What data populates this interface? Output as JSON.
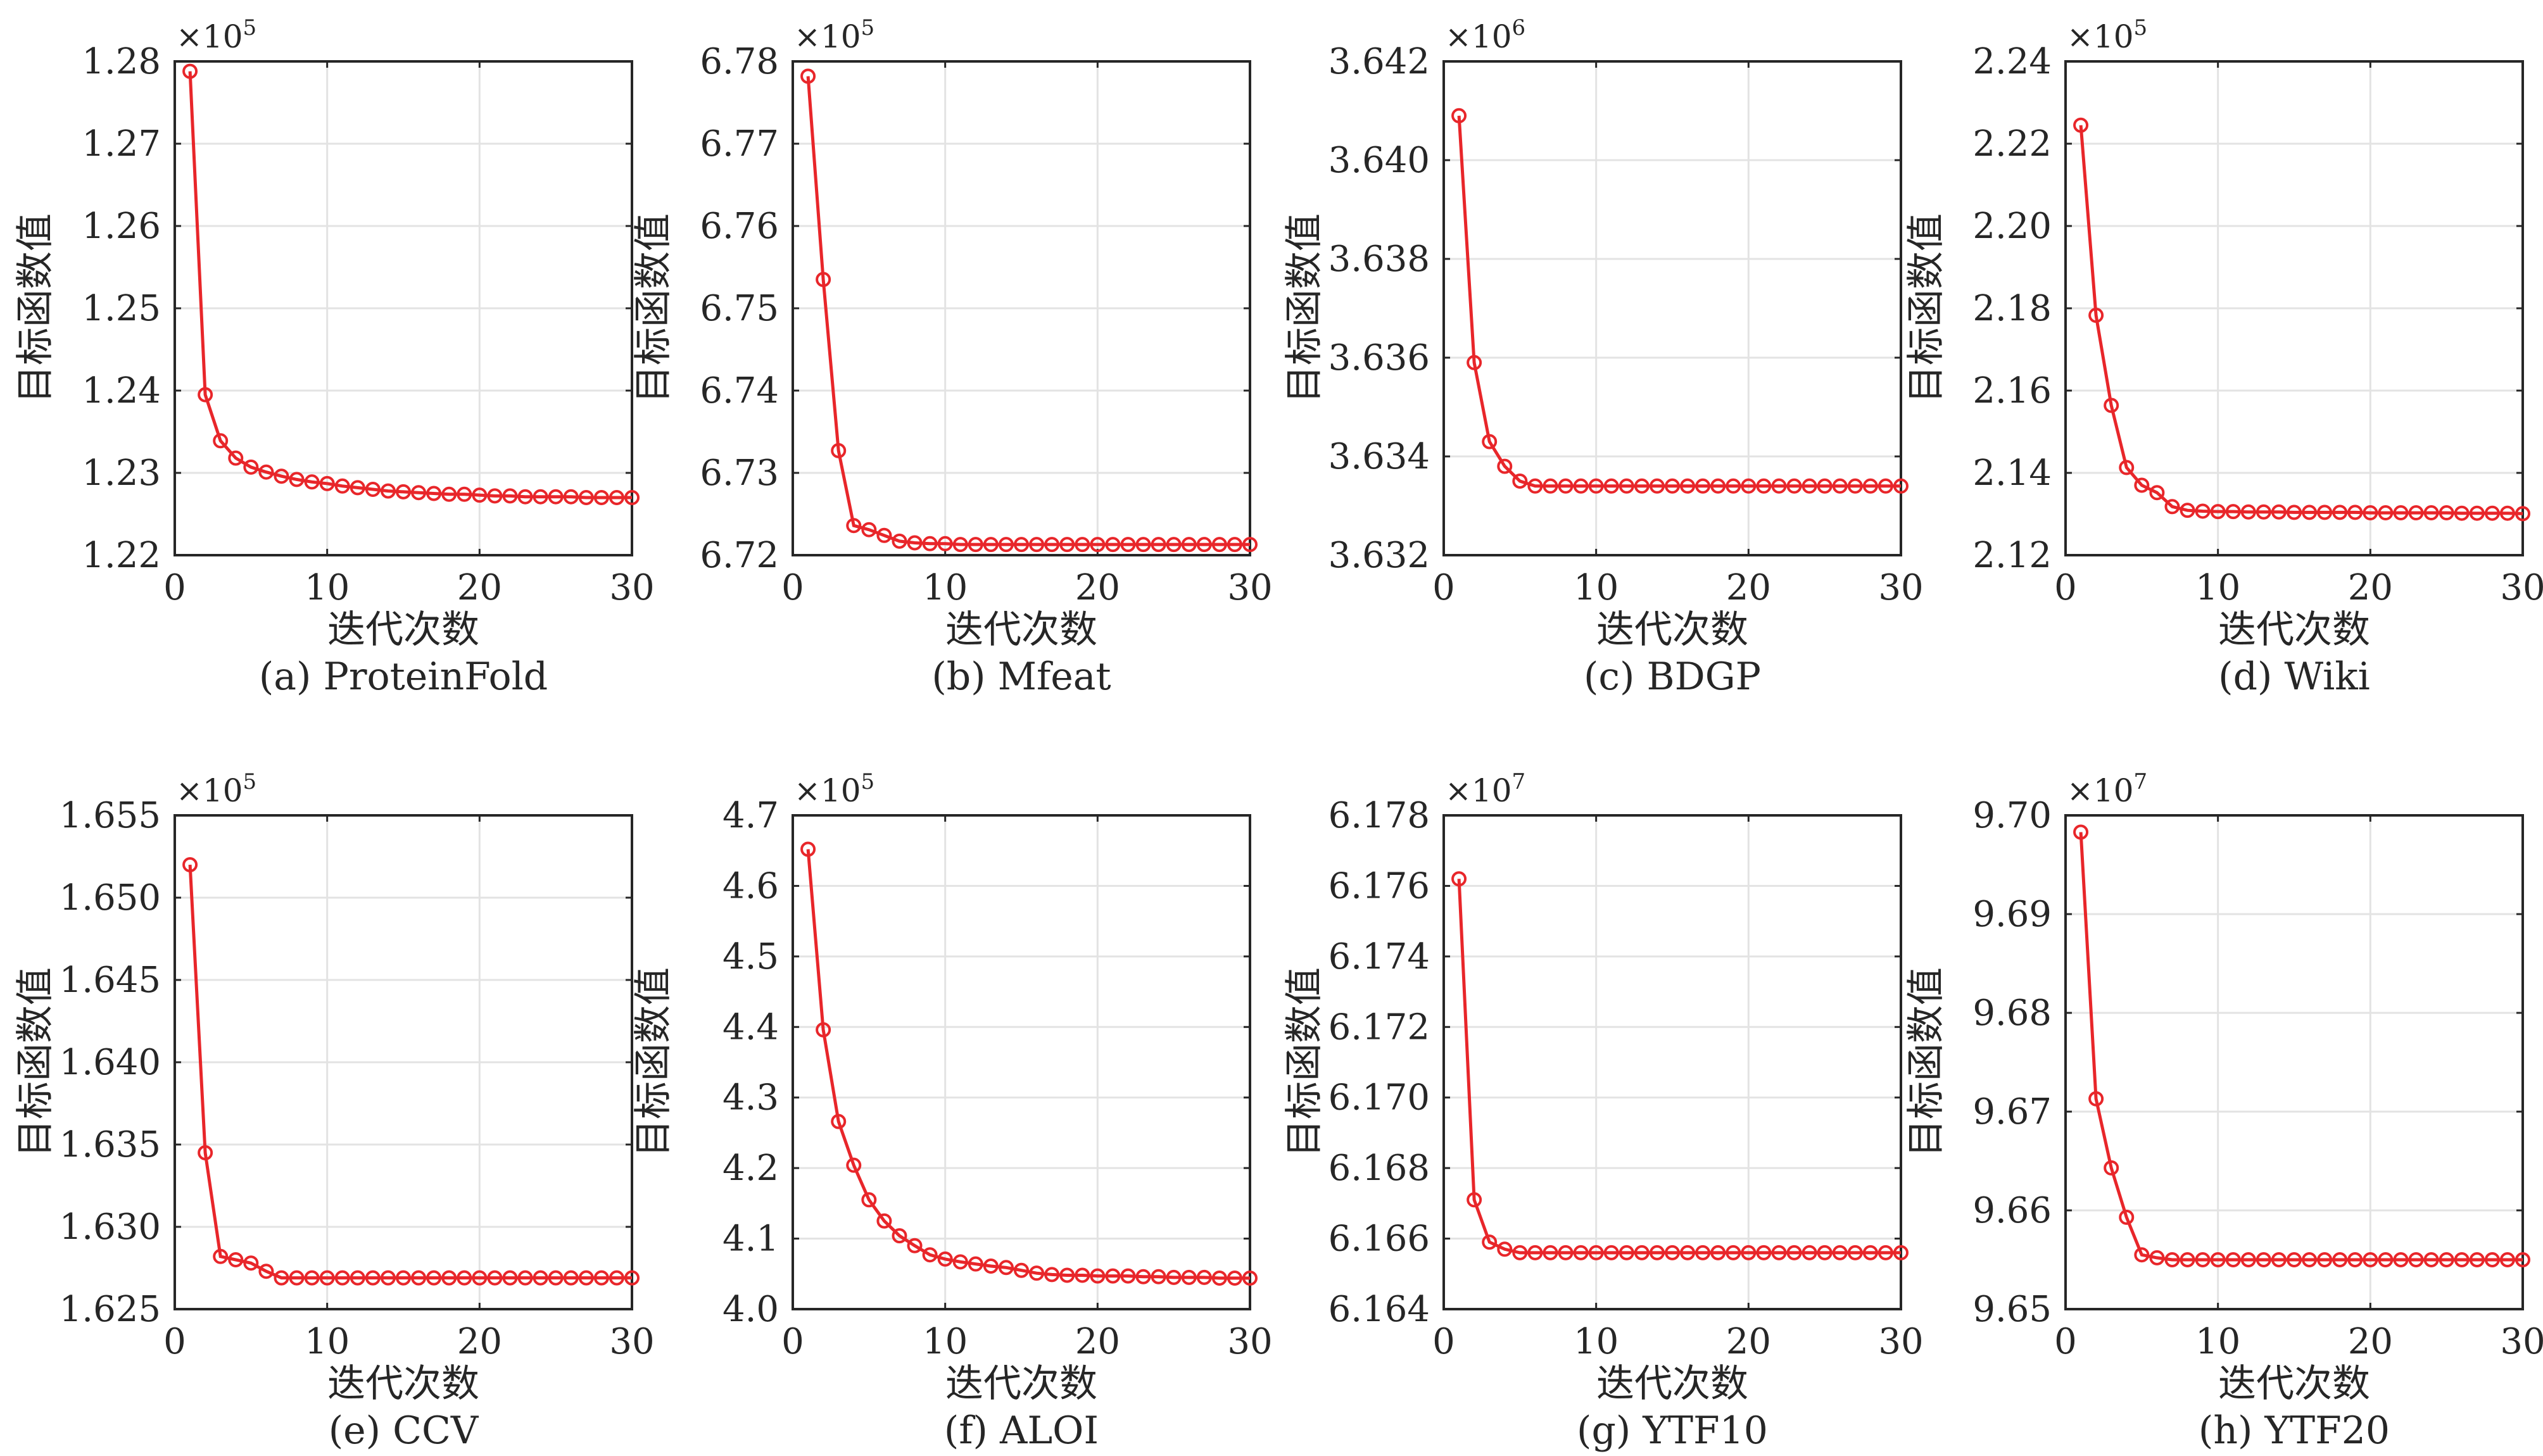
{
  "chart_data": [
    {
      "type": "line",
      "caption": "(a) ProteinFold",
      "xlabel": "迭代次数",
      "ylabel": "目标函数值",
      "exponent": "5",
      "xlim": [
        0,
        30
      ],
      "xticks": [
        "0",
        "10",
        "20",
        "30"
      ],
      "ylim": [
        1.22,
        1.28
      ],
      "yticks": [
        "1.22",
        "1.23",
        "1.24",
        "1.25",
        "1.26",
        "1.27",
        "1.28"
      ],
      "grid": true,
      "x": [
        1,
        2,
        3,
        4,
        5,
        6,
        7,
        8,
        9,
        10,
        11,
        12,
        13,
        14,
        15,
        16,
        17,
        18,
        19,
        20,
        21,
        22,
        23,
        24,
        25,
        26,
        27,
        28,
        29,
        30
      ],
      "y": [
        1.2788,
        1.2395,
        1.2339,
        1.2318,
        1.2307,
        1.2301,
        1.2296,
        1.2292,
        1.2289,
        1.2287,
        1.2284,
        1.2282,
        1.228,
        1.2278,
        1.2277,
        1.2276,
        1.2275,
        1.2274,
        1.2274,
        1.2273,
        1.2272,
        1.2272,
        1.2271,
        1.2271,
        1.2271,
        1.2271,
        1.227,
        1.227,
        1.227,
        1.227
      ]
    },
    {
      "type": "line",
      "caption": "(b) Mfeat",
      "xlabel": "迭代次数",
      "ylabel": "目标函数值",
      "exponent": "5",
      "xlim": [
        0,
        30
      ],
      "xticks": [
        "0",
        "10",
        "20",
        "30"
      ],
      "ylim": [
        6.72,
        6.78
      ],
      "yticks": [
        "6.72",
        "6.73",
        "6.74",
        "6.75",
        "6.76",
        "6.77",
        "6.78"
      ],
      "grid": true,
      "x": [
        1,
        2,
        3,
        4,
        5,
        6,
        7,
        8,
        9,
        10,
        11,
        12,
        13,
        14,
        15,
        16,
        17,
        18,
        19,
        20,
        21,
        22,
        23,
        24,
        25,
        26,
        27,
        28,
        29,
        30
      ],
      "y": [
        6.7782,
        6.7535,
        6.7327,
        6.7236,
        6.7231,
        6.7224,
        6.7217,
        6.7215,
        6.7214,
        6.7214,
        6.7213,
        6.7213,
        6.7213,
        6.7213,
        6.7213,
        6.7213,
        6.7213,
        6.7213,
        6.7213,
        6.7213,
        6.7213,
        6.7213,
        6.7213,
        6.7213,
        6.7213,
        6.7213,
        6.7213,
        6.7213,
        6.7213,
        6.7213
      ]
    },
    {
      "type": "line",
      "caption": "(c) BDGP",
      "xlabel": "迭代次数",
      "ylabel": "目标函数值",
      "exponent": "6",
      "xlim": [
        0,
        30
      ],
      "xticks": [
        "0",
        "10",
        "20",
        "30"
      ],
      "ylim": [
        3.632,
        3.642
      ],
      "yticks": [
        "3.632",
        "3.634",
        "3.636",
        "3.638",
        "3.640",
        "3.642"
      ],
      "grid": true,
      "x": [
        1,
        2,
        3,
        4,
        5,
        6,
        7,
        8,
        9,
        10,
        11,
        12,
        13,
        14,
        15,
        16,
        17,
        18,
        19,
        20,
        21,
        22,
        23,
        24,
        25,
        26,
        27,
        28,
        29,
        30
      ],
      "y": [
        3.6409,
        3.6359,
        3.6343,
        3.6338,
        3.6335,
        3.6334,
        3.6334,
        3.6334,
        3.6334,
        3.6334,
        3.6334,
        3.6334,
        3.6334,
        3.6334,
        3.6334,
        3.6334,
        3.6334,
        3.6334,
        3.6334,
        3.6334,
        3.6334,
        3.6334,
        3.6334,
        3.6334,
        3.6334,
        3.6334,
        3.6334,
        3.6334,
        3.6334,
        3.6334
      ]
    },
    {
      "type": "line",
      "caption": "(d) Wiki",
      "xlabel": "迭代次数",
      "ylabel": "目标函数值",
      "exponent": "5",
      "xlim": [
        0,
        30
      ],
      "xticks": [
        "0",
        "10",
        "20",
        "30"
      ],
      "ylim": [
        2.12,
        2.24
      ],
      "yticks": [
        "2.12",
        "2.14",
        "2.16",
        "2.18",
        "2.20",
        "2.22",
        "2.24"
      ],
      "grid": true,
      "x": [
        1,
        2,
        3,
        4,
        5,
        6,
        7,
        8,
        9,
        10,
        11,
        12,
        13,
        14,
        15,
        16,
        17,
        18,
        19,
        20,
        21,
        22,
        23,
        24,
        25,
        26,
        27,
        28,
        29,
        30
      ],
      "y": [
        2.2245,
        2.1783,
        2.1564,
        2.1413,
        2.137,
        2.1352,
        2.1318,
        2.1309,
        2.1307,
        2.1306,
        2.1306,
        2.1305,
        2.1305,
        2.1305,
        2.1304,
        2.1304,
        2.1304,
        2.1304,
        2.1304,
        2.1303,
        2.1303,
        2.1303,
        2.1303,
        2.1303,
        2.1303,
        2.1302,
        2.1302,
        2.1302,
        2.1302,
        2.1301
      ]
    },
    {
      "type": "line",
      "caption": "(e) CCV",
      "xlabel": "迭代次数",
      "ylabel": "目标函数值",
      "exponent": "5",
      "xlim": [
        0,
        30
      ],
      "xticks": [
        "0",
        "10",
        "20",
        "30"
      ],
      "ylim": [
        1.625,
        1.655
      ],
      "yticks": [
        "1.625",
        "1.630",
        "1.635",
        "1.640",
        "1.645",
        "1.650",
        "1.655"
      ],
      "grid": true,
      "x": [
        1,
        2,
        3,
        4,
        5,
        6,
        7,
        8,
        9,
        10,
        11,
        12,
        13,
        14,
        15,
        16,
        17,
        18,
        19,
        20,
        21,
        22,
        23,
        24,
        25,
        26,
        27,
        28,
        29,
        30
      ],
      "y": [
        1.652,
        1.6345,
        1.6282,
        1.628,
        1.6278,
        1.6273,
        1.6269,
        1.6269,
        1.6269,
        1.6269,
        1.6269,
        1.6269,
        1.6269,
        1.6269,
        1.6269,
        1.6269,
        1.6269,
        1.6269,
        1.6269,
        1.6269,
        1.6269,
        1.6269,
        1.6269,
        1.6269,
        1.6269,
        1.6269,
        1.6269,
        1.6269,
        1.6269,
        1.6269
      ]
    },
    {
      "type": "line",
      "caption": "(f) ALOI",
      "xlabel": "迭代次数",
      "ylabel": "目标函数值",
      "exponent": "5",
      "xlim": [
        0,
        30
      ],
      "xticks": [
        "0",
        "10",
        "20",
        "30"
      ],
      "ylim": [
        4.0,
        4.7
      ],
      "yticks": [
        "4.0",
        "4.1",
        "4.2",
        "4.3",
        "4.4",
        "4.5",
        "4.6",
        "4.7"
      ],
      "grid": true,
      "x": [
        1,
        2,
        3,
        4,
        5,
        6,
        7,
        8,
        9,
        10,
        11,
        12,
        13,
        14,
        15,
        16,
        17,
        18,
        19,
        20,
        21,
        22,
        23,
        24,
        25,
        26,
        27,
        28,
        29,
        30
      ],
      "y": [
        4.652,
        4.396,
        4.266,
        4.204,
        4.155,
        4.125,
        4.104,
        4.09,
        4.077,
        4.071,
        4.067,
        4.064,
        4.061,
        4.059,
        4.055,
        4.051,
        4.049,
        4.048,
        4.048,
        4.047,
        4.047,
        4.047,
        4.046,
        4.046,
        4.045,
        4.045,
        4.045,
        4.044,
        4.044,
        4.044
      ]
    },
    {
      "type": "line",
      "caption": "(g) YTF10",
      "xlabel": "迭代次数",
      "ylabel": "目标函数值",
      "exponent": "7",
      "xlim": [
        0,
        30
      ],
      "xticks": [
        "0",
        "10",
        "20",
        "30"
      ],
      "ylim": [
        6.164,
        6.178
      ],
      "yticks": [
        "6.164",
        "6.166",
        "6.168",
        "6.170",
        "6.172",
        "6.174",
        "6.176",
        "6.178"
      ],
      "grid": true,
      "x": [
        1,
        2,
        3,
        4,
        5,
        6,
        7,
        8,
        9,
        10,
        11,
        12,
        13,
        14,
        15,
        16,
        17,
        18,
        19,
        20,
        21,
        22,
        23,
        24,
        25,
        26,
        27,
        28,
        29,
        30
      ],
      "y": [
        6.1762,
        6.1671,
        6.1659,
        6.1657,
        6.1656,
        6.1656,
        6.1656,
        6.1656,
        6.1656,
        6.1656,
        6.1656,
        6.1656,
        6.1656,
        6.1656,
        6.1656,
        6.1656,
        6.1656,
        6.1656,
        6.1656,
        6.1656,
        6.1656,
        6.1656,
        6.1656,
        6.1656,
        6.1656,
        6.1656,
        6.1656,
        6.1656,
        6.1656,
        6.1656
      ]
    },
    {
      "type": "line",
      "caption": "(h) YTF20",
      "xlabel": "迭代次数",
      "ylabel": "目标函数值",
      "exponent": "7",
      "xlim": [
        0,
        30
      ],
      "xticks": [
        "0",
        "10",
        "20",
        "30"
      ],
      "ylim": [
        9.65,
        9.7
      ],
      "yticks": [
        "9.65",
        "9.66",
        "9.67",
        "9.68",
        "9.69",
        "9.70"
      ],
      "grid": true,
      "x": [
        1,
        2,
        3,
        4,
        5,
        6,
        7,
        8,
        9,
        10,
        11,
        12,
        13,
        14,
        15,
        16,
        17,
        18,
        19,
        20,
        21,
        22,
        23,
        24,
        25,
        26,
        27,
        28,
        29,
        30
      ],
      "y": [
        9.6983,
        9.6713,
        9.6643,
        9.6593,
        9.6555,
        9.6552,
        9.655,
        9.655,
        9.655,
        9.655,
        9.655,
        9.655,
        9.655,
        9.655,
        9.655,
        9.655,
        9.655,
        9.655,
        9.655,
        9.655,
        9.655,
        9.655,
        9.655,
        9.655,
        9.655,
        9.655,
        9.655,
        9.655,
        9.655,
        9.655
      ]
    }
  ]
}
